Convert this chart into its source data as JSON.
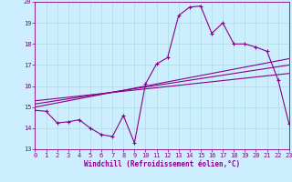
{
  "xlabel": "Windchill (Refroidissement éolien,°C)",
  "bg_color": "#cceeff",
  "line_color": "#880088",
  "grid_color": "#aadddd",
  "ylim": [
    13,
    20
  ],
  "xlim": [
    0,
    23
  ],
  "yticks": [
    13,
    14,
    15,
    16,
    17,
    18,
    19,
    20
  ],
  "xticks": [
    0,
    1,
    2,
    3,
    4,
    5,
    6,
    7,
    8,
    9,
    10,
    11,
    12,
    13,
    14,
    15,
    16,
    17,
    18,
    19,
    20,
    21,
    22,
    23
  ],
  "main_x": [
    0,
    1,
    2,
    3,
    4,
    5,
    6,
    7,
    8,
    9,
    10,
    11,
    12,
    13,
    14,
    15,
    16,
    17,
    18,
    19,
    20,
    21,
    22,
    23
  ],
  "main_y": [
    14.85,
    14.8,
    14.25,
    14.3,
    14.4,
    14.0,
    13.7,
    13.6,
    14.6,
    13.3,
    16.1,
    17.05,
    17.35,
    19.35,
    19.75,
    19.8,
    18.5,
    19.0,
    18.0,
    18.0,
    17.85,
    17.65,
    16.3,
    14.2
  ],
  "line1_x": [
    0,
    23
  ],
  "line1_y": [
    15.0,
    17.3
  ],
  "line2_x": [
    0,
    23
  ],
  "line2_y": [
    15.15,
    17.0
  ],
  "line3_x": [
    0,
    23
  ],
  "line3_y": [
    15.3,
    16.6
  ]
}
